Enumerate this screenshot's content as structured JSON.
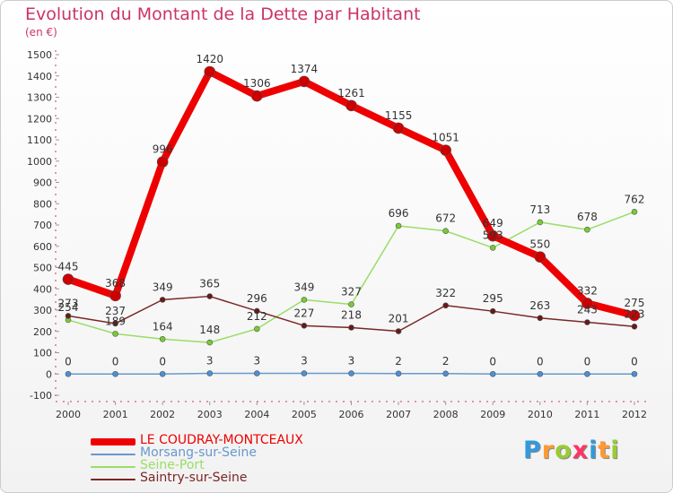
{
  "chart_data": {
    "type": "line",
    "title": "Evolution du Montant de la Dette par Habitant",
    "subtitle": "(en €)",
    "xlabel": "",
    "ylabel": "",
    "categories": [
      "2000",
      "2001",
      "2002",
      "2003",
      "2004",
      "2005",
      "2006",
      "2007",
      "2008",
      "2009",
      "2010",
      "2011",
      "2012"
    ],
    "ylim": [
      -100,
      1500
    ],
    "yticks": [
      -100,
      0,
      100,
      200,
      300,
      400,
      500,
      600,
      700,
      800,
      900,
      1000,
      1100,
      1200,
      1300,
      1400,
      1500
    ],
    "grid": false,
    "legend_position": "bottom-left",
    "series": [
      {
        "name": "LE COUDRAY-MONTCEAUX",
        "color": "#ee0000",
        "marker": "#cc0000",
        "values": [
          445,
          368,
          996,
          1420,
          1306,
          1374,
          1261,
          1155,
          1051,
          649,
          550,
          332,
          275
        ]
      },
      {
        "name": "Morsang-sur-Seine",
        "color": "#6699cc",
        "marker": "#4a90d9",
        "values": [
          0,
          0,
          0,
          3,
          3,
          3,
          3,
          2,
          2,
          0,
          0,
          0,
          0
        ]
      },
      {
        "name": "Seine-Port",
        "color": "#99dd66",
        "marker": "#77cc33",
        "values": [
          254,
          189,
          164,
          148,
          212,
          349,
          327,
          696,
          672,
          593,
          713,
          678,
          762
        ]
      },
      {
        "name": "Saintry-sur-Seine",
        "color": "#7a2626",
        "marker": "#661a1a",
        "values": [
          273,
          237,
          349,
          365,
          296,
          227,
          218,
          201,
          322,
          295,
          263,
          243,
          223
        ]
      }
    ]
  },
  "logo": {
    "letters": [
      "P",
      "r",
      "o",
      "x",
      "i",
      "t",
      "i"
    ],
    "colors": [
      "#3399dd",
      "#ff9933",
      "#99cc33",
      "#ff3366",
      "#3399dd",
      "#ff9933",
      "#99cc33"
    ]
  }
}
